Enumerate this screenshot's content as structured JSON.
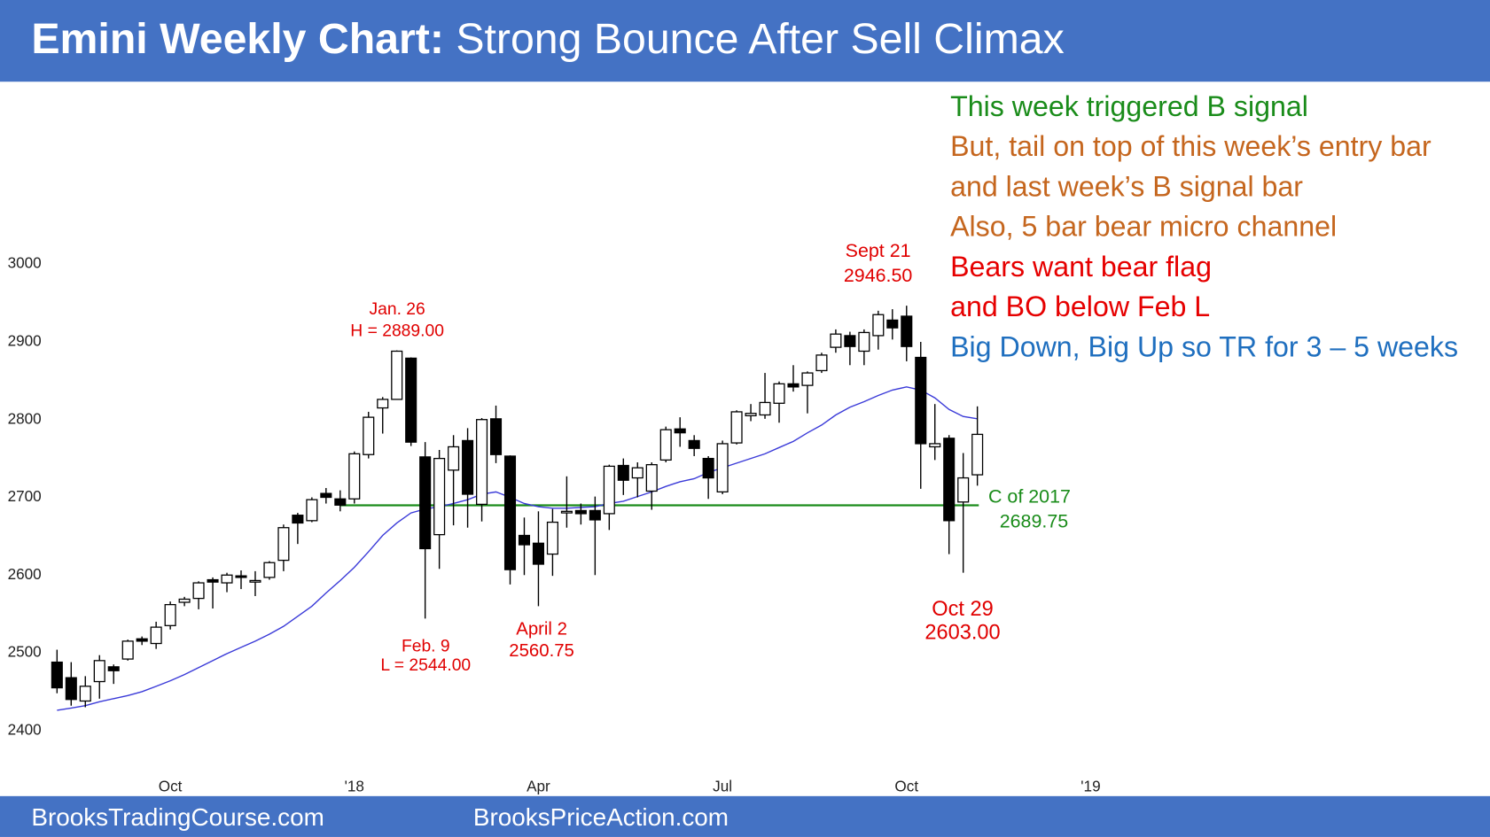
{
  "chart_data": {
    "type": "candlestick",
    "title_bold": "Emini Weekly Chart:",
    "title": "Strong Bounce After Sell Climax",
    "categories": [
      null,
      null,
      null,
      null,
      null,
      null,
      null,
      null,
      "Oct",
      null,
      null,
      null,
      null,
      null,
      null,
      null,
      null,
      null,
      null,
      null,
      null,
      "'18",
      null,
      null,
      null,
      null,
      null,
      null,
      null,
      null,
      null,
      null,
      null,
      null,
      "Apr",
      null,
      null,
      null,
      null,
      null,
      null,
      null,
      null,
      null,
      null,
      null,
      null,
      "Jul",
      null,
      null,
      null,
      null,
      null,
      null,
      null,
      null,
      null,
      null,
      null,
      null,
      "Oct",
      null,
      null,
      null,
      null,
      null,
      null,
      null,
      null,
      null,
      null,
      null,
      null,
      "'19"
    ],
    "open": [
      2488,
      2468,
      2438,
      2463,
      2482,
      2492,
      2518,
      2512,
      2535,
      2565,
      2570,
      2594,
      2590,
      2599,
      2591,
      2597,
      2619,
      2677,
      2670,
      2705,
      2698,
      2698,
      2755,
      2815,
      2826,
      2879,
      2752,
      2652,
      2735,
      2773,
      2691,
      2801,
      2753,
      2651,
      2641,
      2627,
      2680,
      2683,
      2683,
      2679,
      2741,
      2725,
      2708,
      2748,
      2788,
      2773,
      2750,
      2707,
      2770,
      2805,
      2806,
      2821,
      2846,
      2844,
      2863,
      2893,
      2908,
      2888,
      2908,
      2928,
      2933,
      2880,
      2765,
      2776,
      2694,
      2729,
      null,
      null,
      null,
      null,
      null,
      null,
      null,
      null
    ],
    "high": [
      2504,
      2488,
      2470,
      2497,
      2485,
      2517,
      2521,
      2540,
      2566,
      2572,
      2592,
      2597,
      2603,
      2606,
      2605,
      2618,
      2665,
      2680,
      2700,
      2712,
      2709,
      2759,
      2810,
      2829,
      2889,
      2880,
      2771,
      2761,
      2780,
      2789,
      2802,
      2818,
      2754,
      2674,
      2682,
      2685,
      2727,
      2692,
      2701,
      2742,
      2750,
      2745,
      2745,
      2791,
      2803,
      2780,
      2753,
      2773,
      2812,
      2820,
      2860,
      2849,
      2870,
      2862,
      2886,
      2916,
      2913,
      2916,
      2940,
      2942,
      2946.5,
      2900,
      2820,
      2780,
      2757,
      2817,
      null,
      null,
      null,
      null,
      null,
      null,
      null,
      null
    ],
    "low": [
      2448,
      2432,
      2430,
      2441,
      2460,
      2490,
      2510,
      2505,
      2530,
      2560,
      2556,
      2557,
      2578,
      2582,
      2573,
      2594,
      2605,
      2640,
      2668,
      2692,
      2682,
      2692,
      2750,
      2782,
      2826,
      2766,
      2544,
      2608,
      2664,
      2661,
      2669,
      2744,
      2588,
      2600,
      2560,
      2599,
      2661,
      2665,
      2600,
      2658,
      2703,
      2700,
      2684,
      2745,
      2765,
      2753,
      2698,
      2704,
      2768,
      2798,
      2801,
      2796,
      2836,
      2808,
      2860,
      2886,
      2870,
      2870,
      2890,
      2903,
      2875,
      2711,
      2748,
      2627,
      2603,
      2715,
      null,
      null,
      null,
      null,
      null,
      null,
      null,
      null
    ],
    "close": [
      2455,
      2440,
      2457,
      2490,
      2477,
      2515,
      2515,
      2533,
      2562,
      2569,
      2590,
      2591,
      2600,
      2597,
      2593,
      2616,
      2661,
      2667,
      2697,
      2700,
      2690,
      2756,
      2803,
      2826,
      2888,
      2771,
      2634,
      2750,
      2765,
      2704,
      2800,
      2755,
      2607,
      2639,
      2614,
      2668,
      2682,
      2679,
      2671,
      2740,
      2722,
      2738,
      2742,
      2787,
      2783,
      2763,
      2725,
      2769,
      2810,
      2808,
      2822,
      2846,
      2842,
      2860,
      2883,
      2910,
      2894,
      2912,
      2935,
      2918,
      2894,
      2769,
      2769,
      2670,
      2725,
      2781,
      null,
      null,
      null,
      null,
      null,
      null,
      null,
      null
    ],
    "ma": {
      "color": "#3a3ad8",
      "values": [
        2426,
        2429,
        2432,
        2437,
        2441,
        2445,
        2450,
        2457,
        2464,
        2472,
        2481,
        2490,
        2499,
        2507,
        2515,
        2524,
        2534,
        2547,
        2560,
        2577,
        2593,
        2610,
        2630,
        2651,
        2667,
        2680,
        2685,
        2688,
        2692,
        2697,
        2704,
        2707,
        2700,
        2692,
        2688,
        2686,
        2686,
        2687,
        2688,
        2692,
        2695,
        2701,
        2707,
        2714,
        2720,
        2724,
        2732,
        2738,
        2744,
        2750,
        2756,
        2764,
        2772,
        2783,
        2793,
        2806,
        2816,
        2823,
        2831,
        2838,
        2842,
        2838,
        2828,
        2813,
        2804,
        2801,
        null,
        null,
        null,
        null,
        null,
        null,
        null,
        null
      ]
    },
    "ylim": [
      2400,
      3000
    ],
    "yticks": [
      2400,
      2500,
      2600,
      2700,
      2800,
      2900,
      3000
    ],
    "reference_line": {
      "value": 2689.75,
      "label": "C of 2017",
      "color": "#1a8c1a"
    },
    "annotations": [
      {
        "lines": [
          "Jan. 26",
          "H = 2889.00"
        ],
        "color": "#e00000"
      },
      {
        "lines": [
          "Feb. 9",
          "L = 2544.00"
        ],
        "color": "#e00000"
      },
      {
        "lines": [
          "April 2",
          "2560.75"
        ],
        "color": "#e00000"
      },
      {
        "lines": [
          "Sept 21",
          "2946.50"
        ],
        "color": "#e00000"
      },
      {
        "lines": [
          "Oct 29",
          "2603.00"
        ],
        "color": "#e00000"
      }
    ],
    "notes": [
      {
        "text": "This week triggered B signal",
        "color": "#1a8c1a"
      },
      {
        "text": "But, tail on top of this week’s entry bar",
        "color": "#c5661e"
      },
      {
        "text": "and last week’s B signal bar",
        "color": "#c5661e"
      },
      {
        "text": "Also, 5 bar bear micro channel",
        "color": "#c5661e"
      },
      {
        "text": "Bears want bear flag",
        "color": "#e60000"
      },
      {
        "text": "and BO below Feb L",
        "color": "#e60000"
      },
      {
        "text": "Big Down, Big Up so TR for 3 – 5 weeks",
        "color": "#1f6fbf"
      }
    ]
  },
  "footer": {
    "left": "BrooksTradingCourse.com",
    "right": "BrooksPriceAction.com"
  }
}
